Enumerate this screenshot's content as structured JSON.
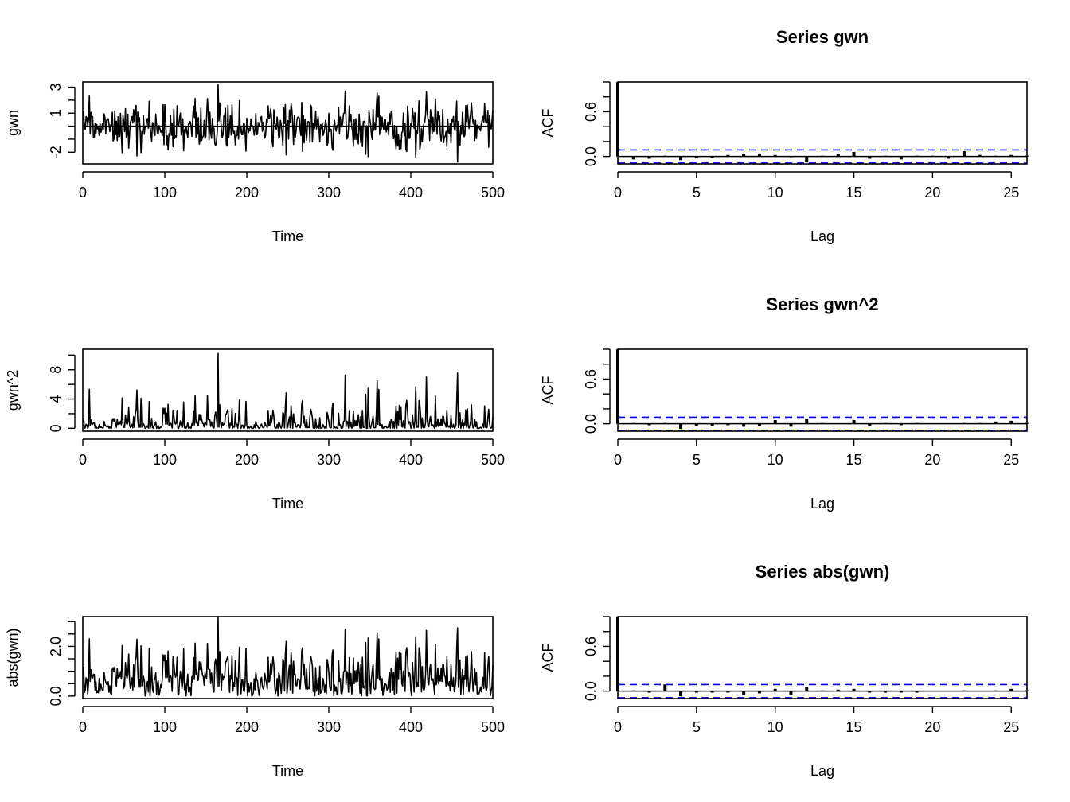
{
  "colors": {
    "line": "#000000",
    "ci_band": "#0000ff",
    "background": "#ffffff"
  },
  "chart_data": [
    {
      "type": "line",
      "panel": "time-series-gwn",
      "title": "",
      "xlabel": "Time",
      "ylabel": "gwn",
      "xlim": [
        0,
        500
      ],
      "ylim": [
        -2.9,
        3.4
      ],
      "xticks": [
        0,
        100,
        200,
        300,
        400,
        500
      ],
      "yticks": [
        -2,
        1,
        3
      ],
      "ytick_labels": [
        "-2",
        "1",
        "3"
      ],
      "hline": 0,
      "series": [
        {
          "values": []
        }
      ],
      "notes_values_generated": true
    },
    {
      "type": "bar",
      "panel": "acf-gwn",
      "title": "Series  gwn",
      "xlabel": "Lag",
      "ylabel": "ACF",
      "xlim": [
        0,
        26
      ],
      "ylim": [
        -0.1,
        1.0
      ],
      "xticks": [
        0,
        5,
        10,
        15,
        20,
        25
      ],
      "yticks": [
        0.0,
        0.6
      ],
      "ytick_labels": [
        "0.0",
        "0.6"
      ],
      "ci": 0.088,
      "lags": [
        0,
        1,
        2,
        3,
        4,
        5,
        6,
        7,
        8,
        9,
        10,
        11,
        12,
        13,
        14,
        15,
        16,
        17,
        18,
        19,
        20,
        21,
        22,
        23,
        24,
        25,
        26
      ],
      "acf": [
        1.0,
        -0.04,
        -0.03,
        0.01,
        -0.05,
        -0.02,
        -0.02,
        0.02,
        0.03,
        0.04,
        0.02,
        -0.01,
        -0.08,
        0.01,
        0.03,
        0.06,
        -0.03,
        0.01,
        -0.04,
        0.01,
        0.01,
        -0.03,
        0.07,
        0.02,
        0.01,
        0.02,
        0.01
      ]
    },
    {
      "type": "line",
      "panel": "time-series-gwn2",
      "title": "",
      "xlabel": "Time",
      "ylabel": "gwn^2",
      "xlim": [
        0,
        500
      ],
      "ylim": [
        -0.4,
        10.8
      ],
      "xticks": [
        0,
        100,
        200,
        300,
        400,
        500
      ],
      "yticks": [
        0,
        4,
        8
      ],
      "ytick_labels": [
        "0",
        "4",
        "8"
      ],
      "series": [
        {
          "values": []
        }
      ]
    },
    {
      "type": "bar",
      "panel": "acf-gwn2",
      "title": "Series  gwn^2",
      "xlabel": "Lag",
      "ylabel": "ACF",
      "xlim": [
        0,
        26
      ],
      "ylim": [
        -0.1,
        1.0
      ],
      "xticks": [
        0,
        5,
        10,
        15,
        20,
        25
      ],
      "yticks": [
        0.0,
        0.6
      ],
      "ytick_labels": [
        "0.0",
        "0.6"
      ],
      "ci": 0.088,
      "lags": [
        0,
        1,
        2,
        3,
        4,
        5,
        6,
        7,
        8,
        9,
        10,
        11,
        12,
        13,
        14,
        15,
        16,
        17,
        18,
        19,
        20,
        21,
        22,
        23,
        24,
        25,
        26
      ],
      "acf": [
        1.0,
        0.01,
        -0.02,
        0.01,
        -0.07,
        -0.03,
        -0.03,
        -0.02,
        -0.04,
        -0.03,
        0.05,
        -0.04,
        0.07,
        0.01,
        0.0,
        0.05,
        -0.03,
        0.01,
        -0.02,
        0.01,
        0.0,
        0.0,
        0.01,
        0.01,
        0.03,
        0.04,
        0.01
      ]
    },
    {
      "type": "line",
      "panel": "time-series-absgwn",
      "title": "",
      "xlabel": "Time",
      "ylabel": "abs(gwn)",
      "xlim": [
        0,
        500
      ],
      "ylim": [
        -0.1,
        3.2
      ],
      "xticks": [
        0,
        100,
        200,
        300,
        400,
        500
      ],
      "yticks": [
        0.0,
        2.0
      ],
      "ytick_labels": [
        "0.0",
        "2.0"
      ],
      "series": [
        {
          "values": []
        }
      ]
    },
    {
      "type": "bar",
      "panel": "acf-absgwn",
      "title": "Series  abs(gwn)",
      "xlabel": "Lag",
      "ylabel": "ACF",
      "xlim": [
        0,
        26
      ],
      "ylim": [
        -0.1,
        1.0
      ],
      "xticks": [
        0,
        5,
        10,
        15,
        20,
        25
      ],
      "yticks": [
        0.0,
        0.6
      ],
      "ytick_labels": [
        "0.0",
        "0.6"
      ],
      "ci": 0.088,
      "lags": [
        0,
        1,
        2,
        3,
        4,
        5,
        6,
        7,
        8,
        9,
        10,
        11,
        12,
        13,
        14,
        15,
        16,
        17,
        18,
        19,
        20,
        21,
        22,
        23,
        24,
        25,
        26
      ],
      "acf": [
        1.0,
        0.01,
        -0.02,
        0.09,
        -0.07,
        -0.02,
        -0.02,
        -0.02,
        -0.05,
        -0.03,
        0.03,
        -0.05,
        0.06,
        0.01,
        0.02,
        0.03,
        -0.02,
        -0.02,
        -0.02,
        -0.02,
        0.0,
        0.0,
        0.01,
        0.0,
        0.01,
        0.03,
        0.01
      ]
    }
  ]
}
